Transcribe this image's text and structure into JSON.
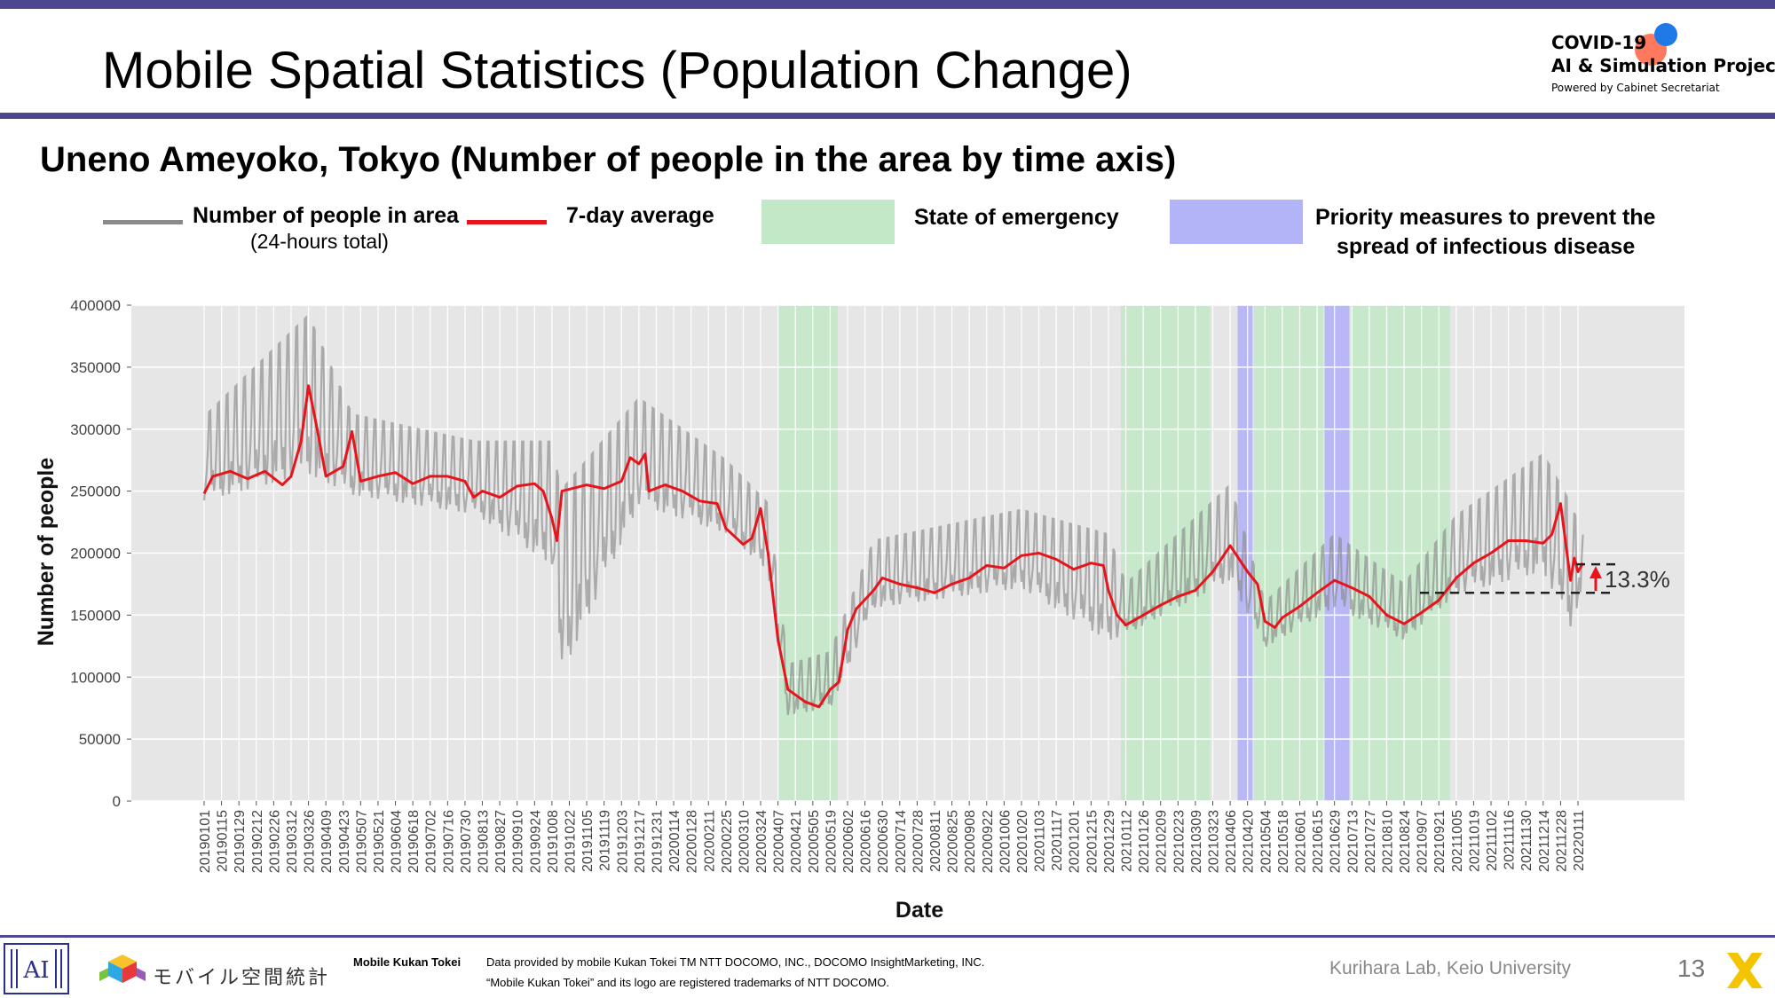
{
  "page": {
    "title": "Mobile Spatial Statistics (Population Change)",
    "subtitle": "Uneno Ameyoko, Tokyo (Number of people in the area by time axis)",
    "page_number": "13"
  },
  "logo": {
    "line1": "COVID-19",
    "line2": "AI & Simulation Project",
    "line3": "Powered by Cabinet Secretariat"
  },
  "legend": {
    "daily_label": "Number of people in area",
    "daily_sub": "(24-hours total)",
    "avg_label": "7-day average",
    "emergency_label": "State of emergency",
    "priority_label_1": "Priority measures to prevent the",
    "priority_label_2": "spread of infectious disease",
    "colors": {
      "daily": "#8a8a8a",
      "avg": "#e8141c",
      "emergency": "#c3e8c8",
      "priority": "#b3b3f7"
    }
  },
  "footer": {
    "mobile_kukan_jp": "モバイル空間統計",
    "mobile_kukan_en": "Mobile Kukan Tokei",
    "credit_1": "Data provided by mobile Kukan Tokei TM NTT DOCOMO, INC., DOCOMO InsightMarketing, INC.",
    "credit_2": "“Mobile Kukan Tokei” and its logo are registered trademarks of NTT DOCOMO.",
    "lab": "Kurihara Lab, Keio University"
  },
  "chart_data": {
    "type": "line",
    "xlabel": "Date",
    "ylabel": "Number of people",
    "ylim": [
      0,
      400000
    ],
    "yticks": [
      0,
      50000,
      100000,
      150000,
      200000,
      250000,
      300000,
      350000,
      400000
    ],
    "x_start": "20190101",
    "x_end": "20220115",
    "grid": true,
    "background": "#e6e6e6",
    "xticks": [
      "20190101",
      "20190115",
      "20190129",
      "20190212",
      "20190226",
      "20190312",
      "20190326",
      "20190409",
      "20190423",
      "20190507",
      "20190521",
      "20190604",
      "20190618",
      "20190702",
      "20190716",
      "20190730",
      "20190813",
      "20190827",
      "20190910",
      "20190924",
      "20191008",
      "20191022",
      "20191105",
      "20191119",
      "20191203",
      "20191217",
      "20191231",
      "20200114",
      "20200128",
      "20200211",
      "20200225",
      "20200310",
      "20200324",
      "20200407",
      "20200421",
      "20200505",
      "20200519",
      "20200602",
      "20200616",
      "20200630",
      "20200714",
      "20200728",
      "20200811",
      "20200825",
      "20200908",
      "20200922",
      "20201006",
      "20201020",
      "20201103",
      "20201117",
      "20201201",
      "20201215",
      "20201229",
      "20210112",
      "20210126",
      "20210209",
      "20210223",
      "20210309",
      "20210323",
      "20210406",
      "20210420",
      "20210504",
      "20210518",
      "20210601",
      "20210615",
      "20210629",
      "20210713",
      "20210727",
      "20210810",
      "20210824",
      "20210907",
      "20210921",
      "20211005",
      "20211019",
      "20211102",
      "20211116",
      "20211130",
      "20211214",
      "20211228",
      "20220111"
    ],
    "periods": [
      {
        "kind": "emergency",
        "start": "20200407",
        "end": "20200525"
      },
      {
        "kind": "emergency",
        "start": "20210108",
        "end": "20210321"
      },
      {
        "kind": "priority",
        "start": "20210412",
        "end": "20210424"
      },
      {
        "kind": "emergency",
        "start": "20210425",
        "end": "20210620"
      },
      {
        "kind": "priority",
        "start": "20210621",
        "end": "20210711"
      },
      {
        "kind": "emergency",
        "start": "20210712",
        "end": "20210930"
      }
    ],
    "series": [
      {
        "name": "7-day average",
        "color": "#e8141c",
        "points": [
          [
            "20190101",
            248000
          ],
          [
            "20190108",
            262000
          ],
          [
            "20190122",
            266000
          ],
          [
            "20190205",
            260000
          ],
          [
            "20190219",
            266000
          ],
          [
            "20190305",
            255000
          ],
          [
            "20190312",
            262000
          ],
          [
            "20190320",
            290000
          ],
          [
            "20190326",
            335000
          ],
          [
            "20190402",
            300000
          ],
          [
            "20190409",
            262000
          ],
          [
            "20190423",
            270000
          ],
          [
            "20190430",
            298000
          ],
          [
            "20190507",
            258000
          ],
          [
            "20190521",
            262000
          ],
          [
            "20190604",
            265000
          ],
          [
            "20190618",
            256000
          ],
          [
            "20190702",
            262000
          ],
          [
            "20190716",
            262000
          ],
          [
            "20190730",
            258000
          ],
          [
            "20190806",
            245000
          ],
          [
            "20190813",
            250000
          ],
          [
            "20190827",
            245000
          ],
          [
            "20190910",
            254000
          ],
          [
            "20190924",
            256000
          ],
          [
            "20191001",
            250000
          ],
          [
            "20191008",
            228000
          ],
          [
            "20191012",
            210000
          ],
          [
            "20191016",
            250000
          ],
          [
            "20191105",
            255000
          ],
          [
            "20191119",
            252000
          ],
          [
            "20191203",
            258000
          ],
          [
            "20191210",
            277000
          ],
          [
            "20191217",
            272000
          ],
          [
            "20191222",
            280000
          ],
          [
            "20191225",
            250000
          ],
          [
            "20200107",
            255000
          ],
          [
            "20200121",
            250000
          ],
          [
            "20200204",
            242000
          ],
          [
            "20200218",
            240000
          ],
          [
            "20200225",
            220000
          ],
          [
            "20200310",
            207000
          ],
          [
            "20200317",
            212000
          ],
          [
            "20200324",
            236000
          ],
          [
            "20200330",
            200000
          ],
          [
            "20200407",
            130000
          ],
          [
            "20200415",
            90000
          ],
          [
            "20200429",
            80000
          ],
          [
            "20200510",
            76000
          ],
          [
            "20200519",
            90000
          ],
          [
            "20200526",
            96000
          ],
          [
            "20200602",
            138000
          ],
          [
            "20200609",
            155000
          ],
          [
            "20200623",
            170000
          ],
          [
            "20200630",
            180000
          ],
          [
            "20200714",
            175000
          ],
          [
            "20200728",
            172000
          ],
          [
            "20200811",
            168000
          ],
          [
            "20200825",
            175000
          ],
          [
            "20200908",
            180000
          ],
          [
            "20200922",
            190000
          ],
          [
            "20201006",
            188000
          ],
          [
            "20201020",
            198000
          ],
          [
            "20201103",
            200000
          ],
          [
            "20201117",
            195000
          ],
          [
            "20201201",
            187000
          ],
          [
            "20201215",
            192000
          ],
          [
            "20201225",
            190000
          ],
          [
            "20201229",
            170000
          ],
          [
            "20210105",
            150000
          ],
          [
            "20210112",
            142000
          ],
          [
            "20210126",
            150000
          ],
          [
            "20210209",
            158000
          ],
          [
            "20210223",
            165000
          ],
          [
            "20210309",
            170000
          ],
          [
            "20210323",
            185000
          ],
          [
            "20210406",
            206000
          ],
          [
            "20210420",
            185000
          ],
          [
            "20210428",
            175000
          ],
          [
            "20210504",
            145000
          ],
          [
            "20210512",
            140000
          ],
          [
            "20210518",
            148000
          ],
          [
            "20210601",
            157000
          ],
          [
            "20210615",
            168000
          ],
          [
            "20210629",
            178000
          ],
          [
            "20210713",
            172000
          ],
          [
            "20210727",
            165000
          ],
          [
            "20210810",
            150000
          ],
          [
            "20210824",
            143000
          ],
          [
            "20210907",
            152000
          ],
          [
            "20210921",
            162000
          ],
          [
            "20211005",
            180000
          ],
          [
            "20211019",
            192000
          ],
          [
            "20211102",
            200000
          ],
          [
            "20211116",
            210000
          ],
          [
            "20211130",
            210000
          ],
          [
            "20211214",
            208000
          ],
          [
            "20211221",
            215000
          ],
          [
            "20211228",
            240000
          ],
          [
            "20220105",
            178000
          ],
          [
            "20220108",
            196000
          ],
          [
            "20220111",
            185000
          ],
          [
            "20220115",
            192000
          ]
        ]
      },
      {
        "name": "Number of people in area",
        "color": "#8a8a8a",
        "range": [
          [
            "20190101",
            235000,
            310000
          ],
          [
            "20190326",
            250000,
            392000
          ],
          [
            "20190430",
            240000,
            312000
          ],
          [
            "20190807",
            225000,
            290000
          ],
          [
            "20191008",
            180000,
            290000
          ],
          [
            "20191015",
            84000,
            250000
          ],
          [
            "20191217",
            230000,
            325000
          ],
          [
            "20200225",
            210000,
            275000
          ],
          [
            "20200330",
            180000,
            240000
          ],
          [
            "20200415",
            65000,
            110000
          ],
          [
            "20200519",
            70000,
            120000
          ],
          [
            "20200623",
            150000,
            210000
          ],
          [
            "20201020",
            165000,
            235000
          ],
          [
            "20201229",
            120000,
            215000
          ],
          [
            "20210112",
            130000,
            175000
          ],
          [
            "20210406",
            170000,
            255000
          ],
          [
            "20210504",
            120000,
            160000
          ],
          [
            "20210629",
            150000,
            215000
          ],
          [
            "20210824",
            125000,
            175000
          ],
          [
            "20211005",
            160000,
            230000
          ],
          [
            "20211214",
            175000,
            280000
          ],
          [
            "20220105",
            130000,
            240000
          ],
          [
            "20220115",
            165000,
            215000
          ]
        ]
      }
    ],
    "annotation": {
      "text": "13.3%",
      "from": 168000,
      "to": 191000
    }
  }
}
